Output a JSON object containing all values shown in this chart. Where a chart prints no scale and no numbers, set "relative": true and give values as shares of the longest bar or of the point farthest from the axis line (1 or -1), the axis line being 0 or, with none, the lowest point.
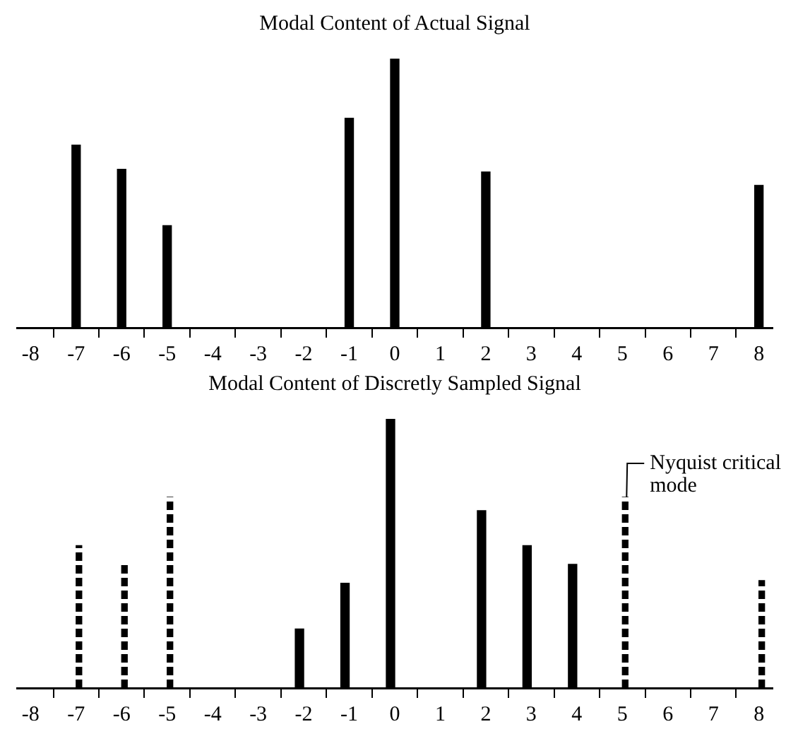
{
  "chart_data": [
    {
      "type": "bar",
      "title": "Modal Content of Actual Signal",
      "relative": true,
      "x": [
        -7,
        -6,
        -5,
        -1,
        0,
        2,
        8
      ],
      "xlim": [
        -8.3,
        8.3
      ],
      "xticks": [
        -8,
        -7,
        -6,
        -5,
        -4,
        -3,
        -2,
        -1,
        0,
        1,
        2,
        3,
        4,
        5,
        6,
        7,
        8
      ],
      "grid": false,
      "legend": false,
      "series": [
        {
          "color": "#000000",
          "line_style": "solid",
          "values": [
            0.68,
            0.59,
            0.38,
            0.78,
            1,
            0.58,
            0.53
          ]
        }
      ]
    },
    {
      "type": "bar",
      "title": "Modal Content of Discretly Sampled Signal",
      "relative": true,
      "x": [
        -7,
        -6,
        -5,
        -2,
        -1,
        0,
        2,
        3,
        4,
        5,
        8
      ],
      "xlim": [
        -8.3,
        8.3
      ],
      "xticks": [
        -8,
        -7,
        -6,
        -5,
        -4,
        -3,
        -2,
        -1,
        0,
        1,
        2,
        3,
        4,
        5,
        6,
        7,
        8
      ],
      "grid": false,
      "legend": false,
      "series": [
        {
          "color": "#000000",
          "line_style": "solid",
          "values": [
            null,
            null,
            null,
            0.22,
            0.39,
            1,
            0.66,
            0.53,
            0.46,
            null,
            null
          ]
        },
        {
          "color": "#000000",
          "line_style": "dashed",
          "values": [
            0.53,
            0.46,
            0.71,
            null,
            null,
            null,
            null,
            null,
            null,
            0.71,
            0.4
          ]
        }
      ],
      "annotations": [
        {
          "text": "Nyquist critical mode",
          "x": 5,
          "y": 0.71
        }
      ]
    }
  ]
}
